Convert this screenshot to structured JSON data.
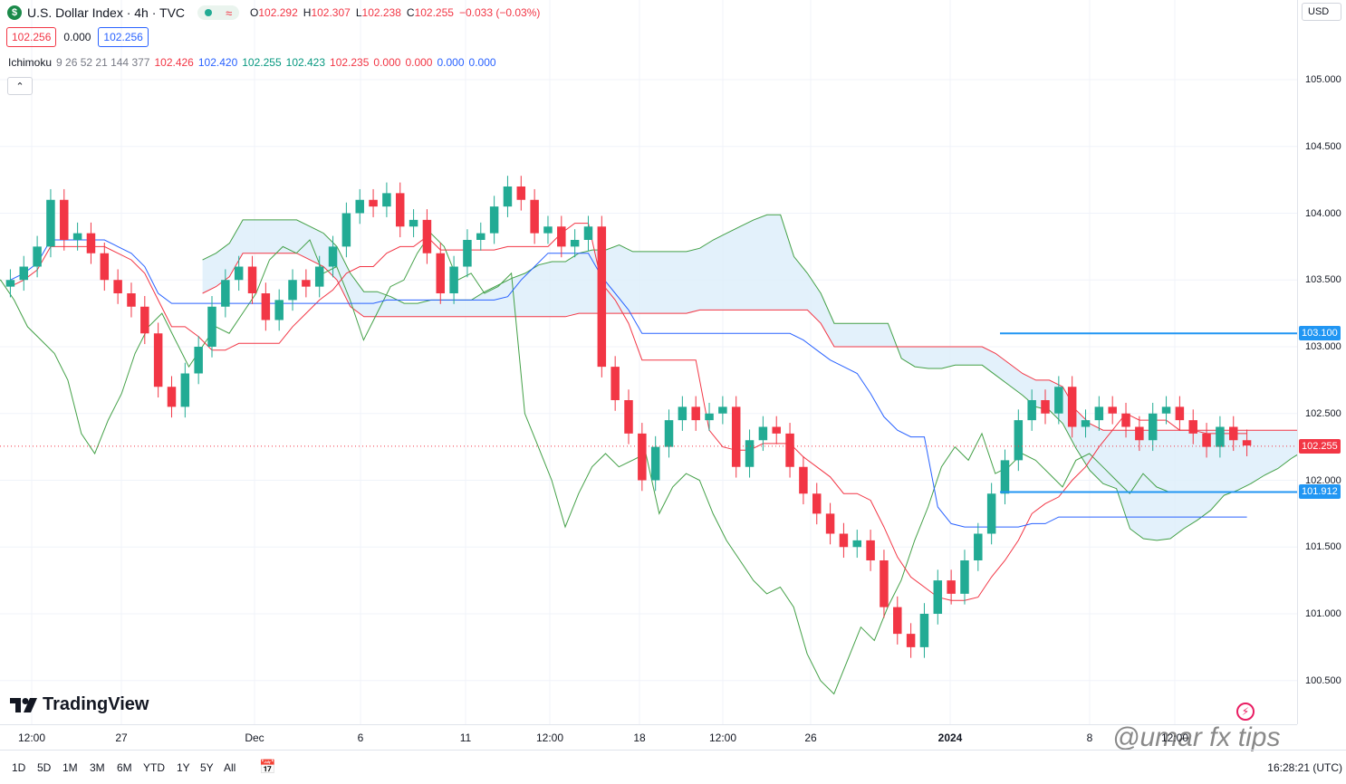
{
  "header": {
    "symbol_badge": "$",
    "title": "U.S. Dollar Index · 4h · TVC",
    "approx_symbol": "≈",
    "ohlc": [
      {
        "k": "O",
        "v": "102.292"
      },
      {
        "k": "H",
        "v": "102.307"
      },
      {
        "k": "L",
        "v": "102.238"
      },
      {
        "k": "C",
        "v": "102.255"
      },
      {
        "k": "",
        "v": "−0.033 (−0.03%)"
      }
    ],
    "bid": "102.256",
    "spread": "0.000",
    "ask": "102.256",
    "currency": "USD"
  },
  "indicator": {
    "name": "Ichimoku",
    "params": "9 26 52 21 144 377",
    "values": [
      {
        "v": "102.426",
        "color": "#f23645"
      },
      {
        "v": "102.420",
        "color": "#2962ff"
      },
      {
        "v": "102.255",
        "color": "#089981"
      },
      {
        "v": "102.423",
        "color": "#089981"
      },
      {
        "v": "102.235",
        "color": "#f23645"
      },
      {
        "v": "0.000",
        "color": "#f23645"
      },
      {
        "v": "0.000",
        "color": "#f23645"
      },
      {
        "v": "0.000",
        "color": "#2962ff"
      },
      {
        "v": "0.000",
        "color": "#2962ff"
      }
    ]
  },
  "chart_data": {
    "type": "candlestick",
    "title": "U.S. Dollar Index · 4h · TVC",
    "y_ticks": [
      "105.000",
      "104.500",
      "104.000",
      "103.500",
      "103.000",
      "102.500",
      "102.000",
      "101.500",
      "101.000",
      "100.500"
    ],
    "ylim": [
      100.35,
      105.55
    ],
    "x_ticks": [
      {
        "label": "12:00",
        "pos": 35
      },
      {
        "label": "27",
        "pos": 134
      },
      {
        "label": "Dec",
        "pos": 281
      },
      {
        "label": "6",
        "pos": 398
      },
      {
        "label": "11",
        "pos": 514
      },
      {
        "label": "12:00",
        "pos": 607
      },
      {
        "label": "18",
        "pos": 706
      },
      {
        "label": "12:00",
        "pos": 798
      },
      {
        "label": "26",
        "pos": 895
      },
      {
        "label": "2024",
        "pos": 1049
      },
      {
        "label": "8",
        "pos": 1203
      },
      {
        "label": "12:00",
        "pos": 1297
      }
    ],
    "last_price": {
      "value": 102.255,
      "label": "102.255",
      "color": "#f23645"
    },
    "horizontal_lines": [
      {
        "value": 103.1,
        "label": "103.100",
        "color": "#2196f3"
      },
      {
        "value": 101.912,
        "label": "101.912",
        "color": "#2196f3"
      }
    ],
    "close_series_approx": [
      103.5,
      103.6,
      103.75,
      104.1,
      103.8,
      103.85,
      103.7,
      103.5,
      103.4,
      103.3,
      103.1,
      102.7,
      102.55,
      102.8,
      103.0,
      103.3,
      103.5,
      103.6,
      103.4,
      103.2,
      103.35,
      103.5,
      103.45,
      103.6,
      103.75,
      104.0,
      104.1,
      104.05,
      104.15,
      103.9,
      103.95,
      103.7,
      103.4,
      103.6,
      103.8,
      103.85,
      104.05,
      104.2,
      104.1,
      103.85,
      103.9,
      103.75,
      103.8,
      103.9,
      102.85,
      102.6,
      102.35,
      102.0,
      102.25,
      102.45,
      102.55,
      102.45,
      102.5,
      102.55,
      102.1,
      102.3,
      102.4,
      102.35,
      102.1,
      101.9,
      101.75,
      101.6,
      101.5,
      101.55,
      101.4,
      101.05,
      100.85,
      100.75,
      101.0,
      101.25,
      101.15,
      101.4,
      101.6,
      101.9,
      102.15,
      102.45,
      102.6,
      102.5,
      102.7,
      102.4,
      102.45,
      102.55,
      102.5,
      102.4,
      102.3,
      102.5,
      102.55,
      102.45,
      102.35,
      102.25,
      102.4,
      102.3,
      102.26
    ],
    "series": [
      {
        "name": "Ichimoku",
        "values": [
          102.426,
          102.42,
          102.255,
          102.423,
          102.235
        ]
      }
    ]
  },
  "colors": {
    "up": "#22ab94",
    "down": "#f23645",
    "tenkan": "#2962ff",
    "kijun": "#f23645",
    "chikou": "#43a047",
    "cloud": "#dceefa",
    "hline": "#2196f3"
  },
  "branding": {
    "logo_text": "TradingView",
    "watermark": "@umar fx tips"
  },
  "range_buttons": [
    "1D",
    "5D",
    "1M",
    "3M",
    "6M",
    "YTD",
    "1Y",
    "5Y",
    "All"
  ],
  "clock": "16:28:21 (UTC)",
  "icons": [
    "dollar-icon",
    "collapse-icon",
    "calendar-range-icon",
    "lightning-icon",
    "tradingview-logo-icon"
  ]
}
